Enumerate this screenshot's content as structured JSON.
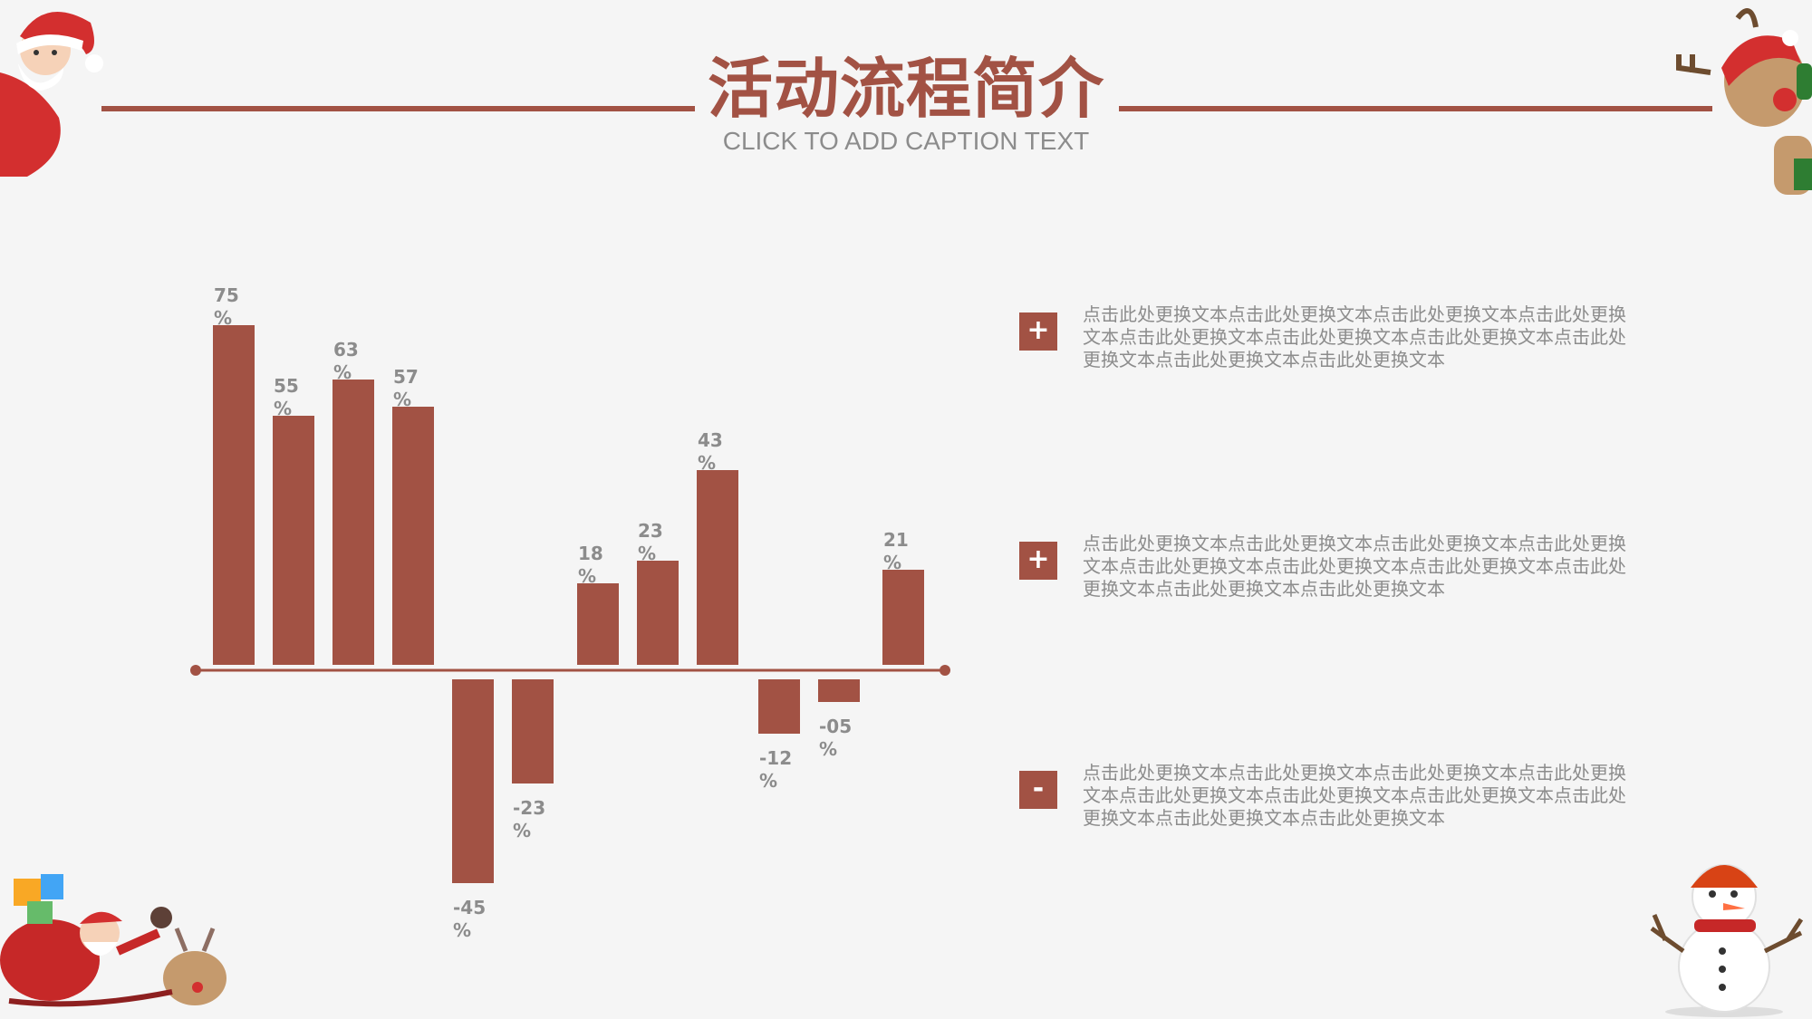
{
  "header": {
    "title": "活动流程简介",
    "subtitle": "CLICK TO ADD CAPTION TEXT"
  },
  "colors": {
    "accent": "#a25244",
    "text_gray": "#8c8c8c",
    "background": "#f5f5f5"
  },
  "chart_data": {
    "type": "bar",
    "values": [
      75,
      55,
      63,
      57,
      -45,
      -23,
      18,
      23,
      43,
      -12,
      -5,
      21
    ],
    "labels": [
      "75%",
      "55%",
      "63%",
      "57%",
      "-45%",
      "-23%",
      "18%",
      "23%",
      "43%",
      "-12%",
      "-05%",
      "21%"
    ],
    "unit": "%",
    "ylim": [
      -50,
      80
    ],
    "title": "",
    "xlabel": "",
    "ylabel": "",
    "grid": false
  },
  "items": [
    {
      "icon": "+",
      "text": "点击此处更换文本点击此处更换文本点击此处更换文本点击此处更换文本点击此处更换文本点击此处更换文本点击此处更换文本点击此处更换文本点击此处更换文本点击此处更换文本"
    },
    {
      "icon": "+",
      "text": "点击此处更换文本点击此处更换文本点击此处更换文本点击此处更换文本点击此处更换文本点击此处更换文本点击此处更换文本点击此处更换文本点击此处更换文本点击此处更换文本"
    },
    {
      "icon": "-",
      "text": "点击此处更换文本点击此处更换文本点击此处更换文本点击此处更换文本点击此处更换文本点击此处更换文本点击此处更换文本点击此处更换文本点击此处更换文本点击此处更换文本"
    }
  ],
  "decorations": [
    "santa-icon",
    "reindeer-icon",
    "santa-sleigh-icon",
    "snowman-icon"
  ]
}
